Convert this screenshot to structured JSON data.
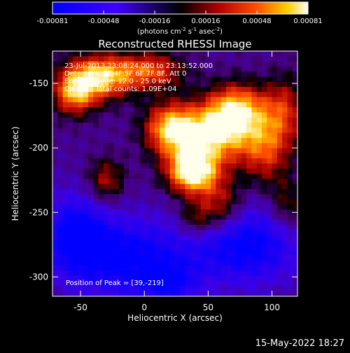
{
  "chart_data": {
    "type": "heatmap",
    "title": "Reconstructed RHESSI Image",
    "xlabel": "Heliocentric X (arcsec)",
    "ylabel": "Heliocentric Y (arcsec)",
    "xlim": [
      -72,
      120
    ],
    "ylim": [
      -315,
      -125
    ],
    "xticks": [
      -50,
      0,
      50,
      100
    ],
    "yticks": [
      -150,
      -200,
      -250,
      -300
    ],
    "colorbar": {
      "range": [
        -0.00081,
        0.00081
      ],
      "ticks": [
        "-0.00081",
        "-0.00048",
        "-0.00016",
        "0.00016",
        "0.00048",
        "0.00081"
      ],
      "unit_main": "(photons cm",
      "unit_e1": "-2",
      "unit_mid": " s",
      "unit_e2": "-1",
      "unit_mid2": " asec",
      "unit_e3": "-2",
      "unit_end": ")"
    },
    "annotations": {
      "time_range": "23-Jul-2013 23:08:24.000 to 23:13:52.000",
      "detectors": "Detectors: 3F 4F 5F 6F 7F 8F, Att 0",
      "energy_range": "Energy Range: 12.0 - 25.0 keV",
      "clean_info": "Clean     Total counts: 1.09E+04",
      "peak": "Position of Peak = [39,-219]"
    },
    "peak": [
      39,
      -219
    ],
    "sources": [
      {
        "x": 38,
        "y": -219,
        "amp": 0.0011,
        "sx": 14,
        "sy": 12
      },
      {
        "x": 52,
        "y": -190,
        "amp": 0.0009,
        "sx": 22,
        "sy": 16
      },
      {
        "x": 20,
        "y": -185,
        "amp": 0.00075,
        "sx": 14,
        "sy": 14
      },
      {
        "x": 72,
        "y": -170,
        "amp": 0.0008,
        "sx": 16,
        "sy": 14
      },
      {
        "x": 95,
        "y": -200,
        "amp": 0.00055,
        "sx": 14,
        "sy": 20
      },
      {
        "x": 110,
        "y": -170,
        "amp": 0.00045,
        "sx": 12,
        "sy": 18
      },
      {
        "x": -35,
        "y": -145,
        "amp": 0.0009,
        "sx": 18,
        "sy": 12
      },
      {
        "x": -55,
        "y": -158,
        "amp": 0.0007,
        "sx": 12,
        "sy": 12
      },
      {
        "x": 5,
        "y": -140,
        "amp": 0.0006,
        "sx": 18,
        "sy": 10
      },
      {
        "x": 60,
        "y": -245,
        "amp": 0.0005,
        "sx": 12,
        "sy": 14
      },
      {
        "x": -30,
        "y": -225,
        "amp": 0.00045,
        "sx": 10,
        "sy": 12
      },
      {
        "x": 112,
        "y": -245,
        "amp": 0.00035,
        "sx": 10,
        "sy": 14
      },
      {
        "x": 40,
        "y": -255,
        "amp": 0.0004,
        "sx": 10,
        "sy": 10
      },
      {
        "x": -15,
        "y": -285,
        "amp": -0.0006,
        "sx": 35,
        "sy": 22
      },
      {
        "x": -55,
        "y": -265,
        "amp": -0.0005,
        "sx": 18,
        "sy": 22
      },
      {
        "x": 80,
        "y": -275,
        "amp": -0.0006,
        "sx": 30,
        "sy": 22
      },
      {
        "x": 20,
        "y": -305,
        "amp": -0.00035,
        "sx": 16,
        "sy": 12
      }
    ]
  },
  "footer": {
    "timestamp": "15-May-2022 18:27"
  }
}
